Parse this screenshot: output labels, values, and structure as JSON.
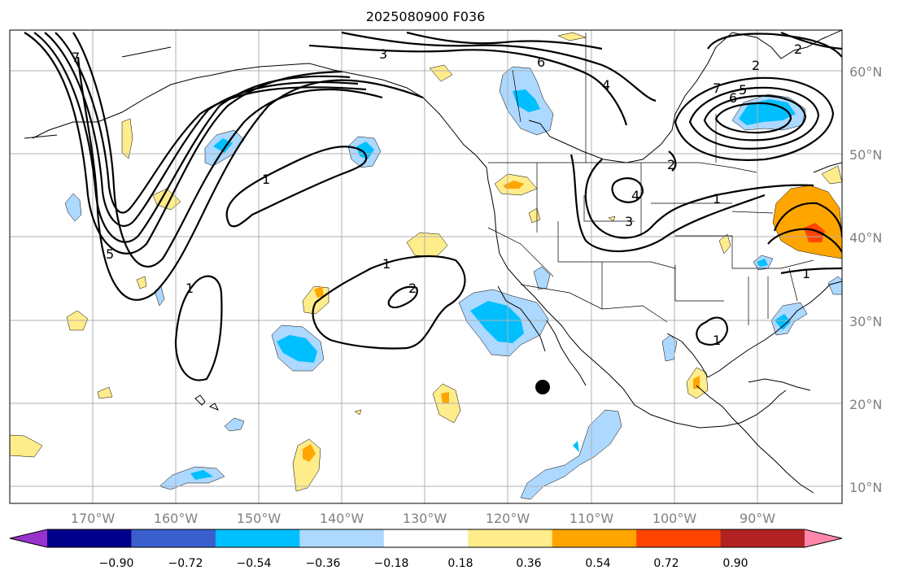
{
  "title": "2025080900 F036",
  "lat_labels": [
    "60°N",
    "50°N",
    "40°N",
    "30°N",
    "20°N",
    "10°N"
  ],
  "lon_labels": [
    "170°W",
    "160°W",
    "150°W",
    "140°W",
    "130°W",
    "120°W",
    "110°W",
    "100°W",
    "90°W"
  ],
  "colorbar": {
    "ticks": [
      "−0.90",
      "−0.72",
      "−0.54",
      "−0.36",
      "−0.18",
      "0.18",
      "0.36",
      "0.54",
      "0.72",
      "0.90"
    ],
    "colors": [
      "#9932cc",
      "#00008b",
      "#3a5fcd",
      "#00bfff",
      "#add8ff",
      "#ffffff",
      "#ffec8b",
      "#ffa500",
      "#ff4500",
      "#b22222",
      "#ff88aa"
    ]
  },
  "contour_labels": [
    "1",
    "1",
    "1",
    "1",
    "1",
    "1",
    "2",
    "2",
    "2",
    "2",
    "3",
    "3",
    "4",
    "4",
    "5",
    "5",
    "6",
    "6",
    "7",
    "7"
  ],
  "colors": {
    "grid": "#b0b0b0",
    "light_blue": "#add8ff",
    "blue": "#00bfff",
    "yellow": "#ffec8b",
    "orange": "#ffa500",
    "red": "#ff4500"
  },
  "marker": {
    "label": "black dot",
    "lon": -116.5,
    "lat": 22
  }
}
